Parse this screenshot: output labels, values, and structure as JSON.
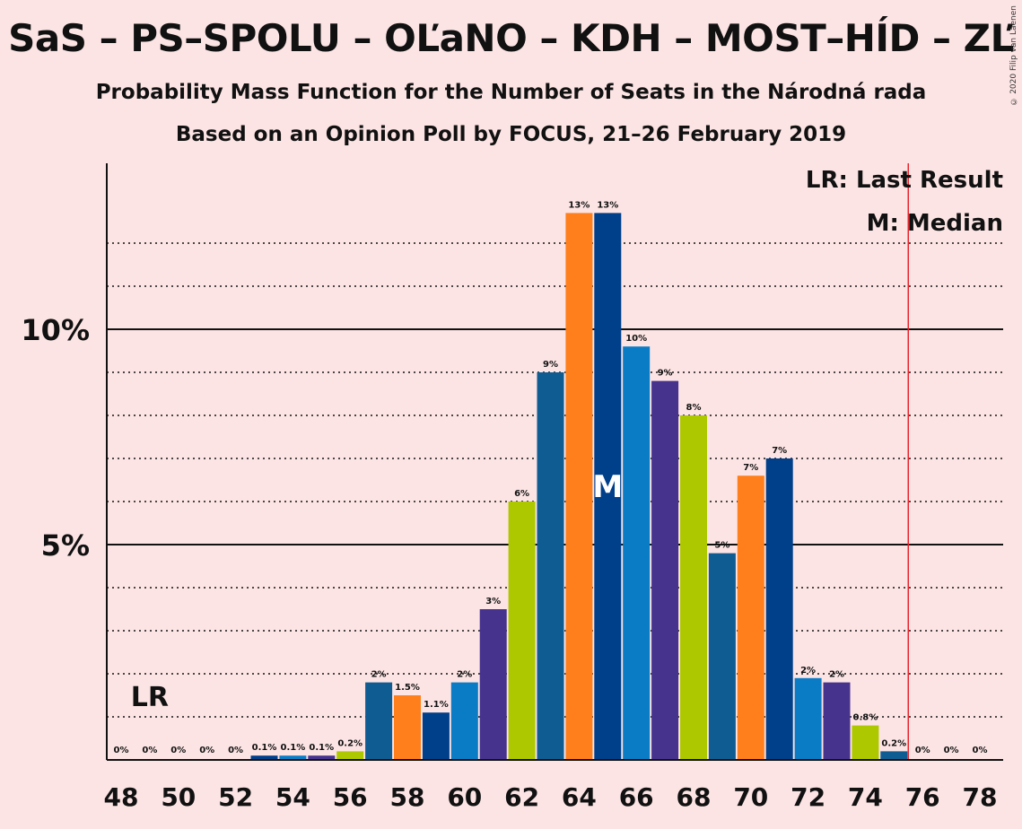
{
  "title": "SaS – PS–SPOLU – OĽaNO – KDH – MOST–HÍD – ZĽ",
  "subtitle1": "Probability Mass Function for the Number of Seats in the Národná rada",
  "subtitle2": "Based on an Opinion Poll by FOCUS, 21–26 February 2019",
  "copyright": "© 2020 Filip van Laenen",
  "legend": {
    "lr": "LR: Last Result",
    "median": "M: Median"
  },
  "markers": {
    "lr_label": "LR",
    "median_label": "M"
  },
  "colors": {
    "background": "#fde4e4",
    "majority_line": "#e8242c",
    "palette": [
      "#0f5c93",
      "#ff7f1c",
      "#003f8a",
      "#0a7cc6",
      "#46338e",
      "#aec800"
    ]
  },
  "chart_data": {
    "type": "bar",
    "x": [
      48,
      49,
      50,
      51,
      52,
      53,
      54,
      55,
      56,
      57,
      58,
      59,
      60,
      61,
      62,
      63,
      64,
      65,
      66,
      67,
      68,
      69,
      70,
      71,
      72,
      73,
      74,
      75,
      76,
      77,
      78
    ],
    "values": [
      0,
      0,
      0,
      0,
      0,
      0.1,
      0.1,
      0.1,
      0.2,
      1.8,
      1.5,
      1.1,
      1.8,
      3.5,
      6.0,
      9.0,
      12.7,
      12.7,
      9.6,
      8.8,
      8.0,
      4.8,
      6.6,
      7.0,
      1.9,
      1.8,
      0.8,
      0.2,
      0,
      0,
      0
    ],
    "labels": [
      "0%",
      "0%",
      "0%",
      "0%",
      "0%",
      "0.1%",
      "0.1%",
      "0.1%",
      "0.2%",
      "2%",
      "1.5%",
      "1.1%",
      "2%",
      "3%",
      "6%",
      "9%",
      "13%",
      "13%",
      "10%",
      "9%",
      "8%",
      "5%",
      "7%",
      "7%",
      "2%",
      "2%",
      "0.8%",
      "0.2%",
      "0%",
      "0%",
      "0%"
    ],
    "colors": [
      "#0f5c93",
      "#ff7f1c",
      "#003f8a",
      "#0a7cc6",
      "#46338e",
      "#003f8a",
      "#0a7cc6",
      "#46338e",
      "#aec800",
      "#0f5c93",
      "#ff7f1c",
      "#003f8a",
      "#0a7cc6",
      "#46338e",
      "#aec800",
      "#0f5c93",
      "#ff7f1c",
      "#003f8a",
      "#0a7cc6",
      "#46338e",
      "#aec800",
      "#0f5c93",
      "#ff7f1c",
      "#003f8a",
      "#0a7cc6",
      "#46338e",
      "#aec800",
      "#0f5c93",
      "#ff7f1c",
      "#003f8a",
      "#0a7cc6"
    ],
    "xticks": [
      48,
      50,
      52,
      54,
      56,
      58,
      60,
      62,
      64,
      66,
      68,
      70,
      72,
      74,
      76,
      78
    ],
    "yticks": [
      {
        "value": 5,
        "label": "5%"
      },
      {
        "value": 10,
        "label": "10%"
      }
    ],
    "ylim": [
      0,
      13.8
    ],
    "xlim": [
      47.5,
      78.5
    ],
    "grid": "dotted every 1%",
    "last_result": 49,
    "median": 65,
    "majority_line": 75.5
  }
}
